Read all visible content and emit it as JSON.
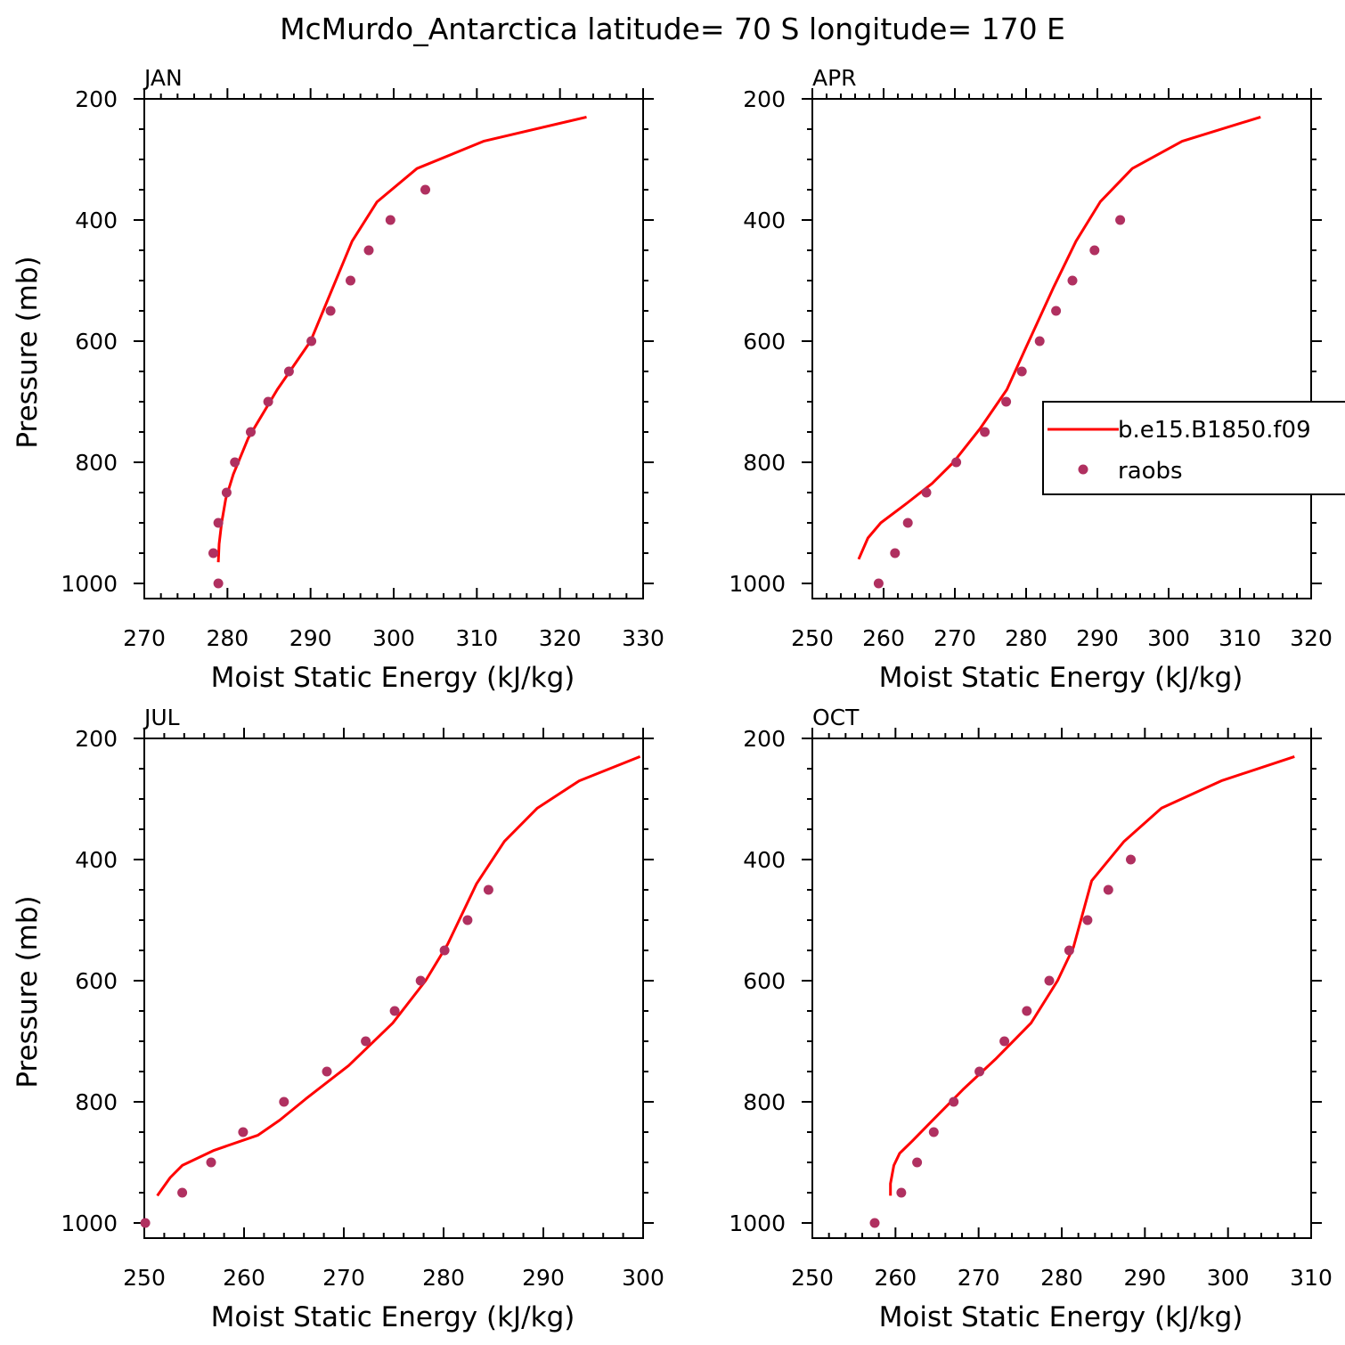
{
  "figure": {
    "title": "McMurdo_Antarctica  latitude= 70 S longitude= 170 E"
  },
  "legend": {
    "model_label": "b.e15.B1850.f09",
    "obs_label": "raobs"
  },
  "colors": {
    "model_line": "#ff0000",
    "obs_marker": "#b03060",
    "axes": "#000000",
    "background": "#ffffff"
  },
  "chart_data": [
    {
      "type": "scatter",
      "panel": "JAN",
      "xlabel": "Moist Static Energy (kJ/kg)",
      "ylabel": "Pressure (mb)",
      "xlim": [
        270,
        330
      ],
      "xticks": [
        270,
        280,
        290,
        300,
        310,
        320,
        330
      ],
      "ylim": [
        1025,
        200
      ],
      "yticks": [
        200,
        400,
        600,
        800,
        1000
      ],
      "grid": false,
      "series": [
        {
          "name": "b.e15.B1850.f09",
          "style": "line",
          "points": [
            [
              278.9,
              965
            ],
            [
              279.0,
              935
            ],
            [
              279.3,
              900
            ],
            [
              279.8,
              860
            ],
            [
              280.7,
              820
            ],
            [
              282.5,
              760
            ],
            [
              286.0,
              680
            ],
            [
              290.0,
              600
            ],
            [
              295.0,
              435
            ],
            [
              298.0,
              370
            ],
            [
              302.8,
              315
            ],
            [
              310.8,
              270
            ],
            [
              323.2,
              230
            ]
          ]
        },
        {
          "name": "raobs",
          "style": "markers",
          "points": [
            [
              278.9,
              1000
            ],
            [
              278.3,
              950
            ],
            [
              278.9,
              900
            ],
            [
              279.9,
              850
            ],
            [
              280.9,
              800
            ],
            [
              282.8,
              750
            ],
            [
              284.9,
              700
            ],
            [
              287.4,
              650
            ],
            [
              290.1,
              600
            ],
            [
              292.4,
              550
            ],
            [
              294.8,
              500
            ],
            [
              297.0,
              450
            ],
            [
              299.6,
              400
            ],
            [
              303.8,
              350
            ]
          ]
        }
      ]
    },
    {
      "type": "scatter",
      "panel": "APR",
      "xlabel": "Moist Static Energy (kJ/kg)",
      "ylabel": "",
      "xlim": [
        250,
        320
      ],
      "xticks": [
        250,
        260,
        270,
        280,
        290,
        300,
        310,
        320
      ],
      "ylim": [
        1025,
        200
      ],
      "yticks": [
        200,
        400,
        600,
        800,
        1000
      ],
      "grid": false,
      "legend_position": "right",
      "series": [
        {
          "name": "b.e15.B1850.f09",
          "style": "line",
          "points": [
            [
              256.5,
              960
            ],
            [
              257.8,
              925
            ],
            [
              259.6,
              900
            ],
            [
              263.0,
              870
            ],
            [
              266.8,
              835
            ],
            [
              269.8,
              800
            ],
            [
              273.5,
              745
            ],
            [
              277.3,
              680
            ],
            [
              280.0,
              610
            ],
            [
              283.9,
              510
            ],
            [
              287.0,
              435
            ],
            [
              290.4,
              370
            ],
            [
              294.9,
              315
            ],
            [
              301.9,
              270
            ],
            [
              312.9,
              230
            ]
          ]
        },
        {
          "name": "raobs",
          "style": "markers",
          "points": [
            [
              259.3,
              1000
            ],
            [
              261.6,
              950
            ],
            [
              263.4,
              900
            ],
            [
              266.0,
              850
            ],
            [
              270.2,
              800
            ],
            [
              274.2,
              750
            ],
            [
              277.2,
              700
            ],
            [
              279.4,
              650
            ],
            [
              281.9,
              600
            ],
            [
              284.2,
              550
            ],
            [
              286.5,
              500
            ],
            [
              289.6,
              450
            ],
            [
              293.2,
              400
            ]
          ]
        }
      ]
    },
    {
      "type": "scatter",
      "panel": "JUL",
      "xlabel": "Moist Static Energy (kJ/kg)",
      "ylabel": "Pressure (mb)",
      "xlim": [
        250,
        300
      ],
      "xticks": [
        250,
        260,
        270,
        280,
        290,
        300
      ],
      "ylim": [
        1025,
        200
      ],
      "yticks": [
        200,
        400,
        600,
        800,
        1000
      ],
      "grid": false,
      "series": [
        {
          "name": "b.e15.B1850.f09",
          "style": "line",
          "points": [
            [
              251.3,
              955
            ],
            [
              252.6,
              925
            ],
            [
              253.8,
              905
            ],
            [
              257.0,
              880
            ],
            [
              261.4,
              855
            ],
            [
              263.6,
              830
            ],
            [
              266.2,
              795
            ],
            [
              270.5,
              740
            ],
            [
              274.9,
              670
            ],
            [
              278.2,
              600
            ],
            [
              280.4,
              540
            ],
            [
              283.3,
              440
            ],
            [
              286.1,
              370
            ],
            [
              289.4,
              315
            ],
            [
              293.6,
              270
            ],
            [
              299.7,
              230
            ]
          ]
        },
        {
          "name": "raobs",
          "style": "markers",
          "points": [
            [
              250.1,
              1000
            ],
            [
              253.8,
              950
            ],
            [
              256.7,
              900
            ],
            [
              259.9,
              850
            ],
            [
              264.0,
              800
            ],
            [
              268.3,
              750
            ],
            [
              272.2,
              700
            ],
            [
              275.1,
              650
            ],
            [
              277.7,
              600
            ],
            [
              280.1,
              550
            ],
            [
              282.4,
              500
            ],
            [
              284.5,
              450
            ]
          ]
        }
      ]
    },
    {
      "type": "scatter",
      "panel": "OCT",
      "xlabel": "Moist Static Energy (kJ/kg)",
      "ylabel": "",
      "xlim": [
        250,
        310
      ],
      "xticks": [
        250,
        260,
        270,
        280,
        290,
        300,
        310
      ],
      "ylim": [
        1025,
        200
      ],
      "yticks": [
        200,
        400,
        600,
        800,
        1000
      ],
      "grid": false,
      "series": [
        {
          "name": "b.e15.B1850.f09",
          "style": "line",
          "points": [
            [
              259.4,
              955
            ],
            [
              259.4,
              935
            ],
            [
              259.8,
              905
            ],
            [
              260.5,
              885
            ],
            [
              262.0,
              865
            ],
            [
              264.5,
              830
            ],
            [
              268.1,
              780
            ],
            [
              272.0,
              730
            ],
            [
              276.3,
              670
            ],
            [
              279.5,
              600
            ],
            [
              281.4,
              545
            ],
            [
              283.6,
              435
            ],
            [
              287.5,
              370
            ],
            [
              292.0,
              315
            ],
            [
              299.2,
              270
            ],
            [
              308.0,
              230
            ]
          ]
        },
        {
          "name": "raobs",
          "style": "markers",
          "points": [
            [
              257.5,
              1000
            ],
            [
              260.7,
              950
            ],
            [
              262.6,
              900
            ],
            [
              264.6,
              850
            ],
            [
              267.0,
              800
            ],
            [
              270.1,
              750
            ],
            [
              273.1,
              700
            ],
            [
              275.8,
              650
            ],
            [
              278.5,
              600
            ],
            [
              280.9,
              550
            ],
            [
              283.1,
              500
            ],
            [
              285.6,
              450
            ],
            [
              288.3,
              400
            ]
          ]
        }
      ]
    }
  ]
}
